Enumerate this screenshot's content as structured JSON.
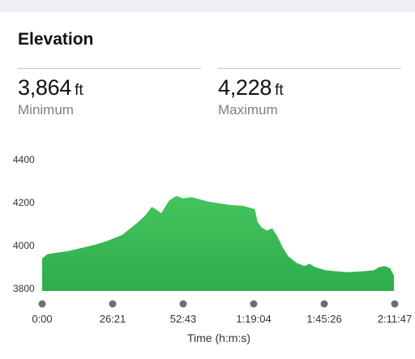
{
  "header": {
    "title": "Elevation"
  },
  "stats": {
    "minimum": {
      "value": "3,864",
      "unit": "ft",
      "label": "Minimum"
    },
    "maximum": {
      "value": "4,228",
      "unit": "ft",
      "label": "Maximum"
    }
  },
  "colors": {
    "fill": "#2dae4a",
    "fill_top": "#45c35f",
    "dot": "#6f6f6f"
  },
  "chart_data": {
    "type": "area",
    "xlabel": "Time (h:m:s)",
    "ylabel": "",
    "ylim": [
      3780,
      4400
    ],
    "yticks": [
      4400,
      4200,
      4000,
      3800
    ],
    "xlim_seconds": [
      0,
      7907
    ],
    "xtick_labels": [
      "0:00",
      "26:21",
      "52:43",
      "1:19:04",
      "1:45:26",
      "2:11:47"
    ],
    "series": [
      {
        "x_time": [
          "0:00",
          "2:00",
          "4:30",
          "10:00",
          "15:00",
          "20:00",
          "24:00",
          "27:00",
          "30:00",
          "33:00",
          "36:00",
          "38:30",
          "41:00",
          "43:00",
          "44:30",
          "46:00",
          "47:30",
          "50:00",
          "51:00",
          "52:30",
          "56:00",
          "62:00",
          "70:00",
          "75:00",
          "79:30",
          "80:30",
          "82:00",
          "84:00",
          "86:00",
          "88:00",
          "90:00",
          "92:00",
          "95:00",
          "98:00",
          "100:00",
          "102:00",
          "106:00",
          "110:00",
          "114:00",
          "120:00",
          "124:00",
          "126:00",
          "128:00",
          "130:00",
          "131:30"
        ],
        "elevation_ft": [
          3940,
          3960,
          3965,
          3975,
          3990,
          4005,
          4020,
          4035,
          4050,
          4080,
          4110,
          4140,
          4180,
          4165,
          4150,
          4180,
          4210,
          4230,
          4228,
          4220,
          4225,
          4205,
          4190,
          4185,
          4170,
          4110,
          4085,
          4070,
          4080,
          4040,
          3990,
          3950,
          3920,
          3905,
          3915,
          3900,
          3885,
          3880,
          3876,
          3880,
          3885,
          3900,
          3905,
          3895,
          3860
        ]
      }
    ]
  }
}
